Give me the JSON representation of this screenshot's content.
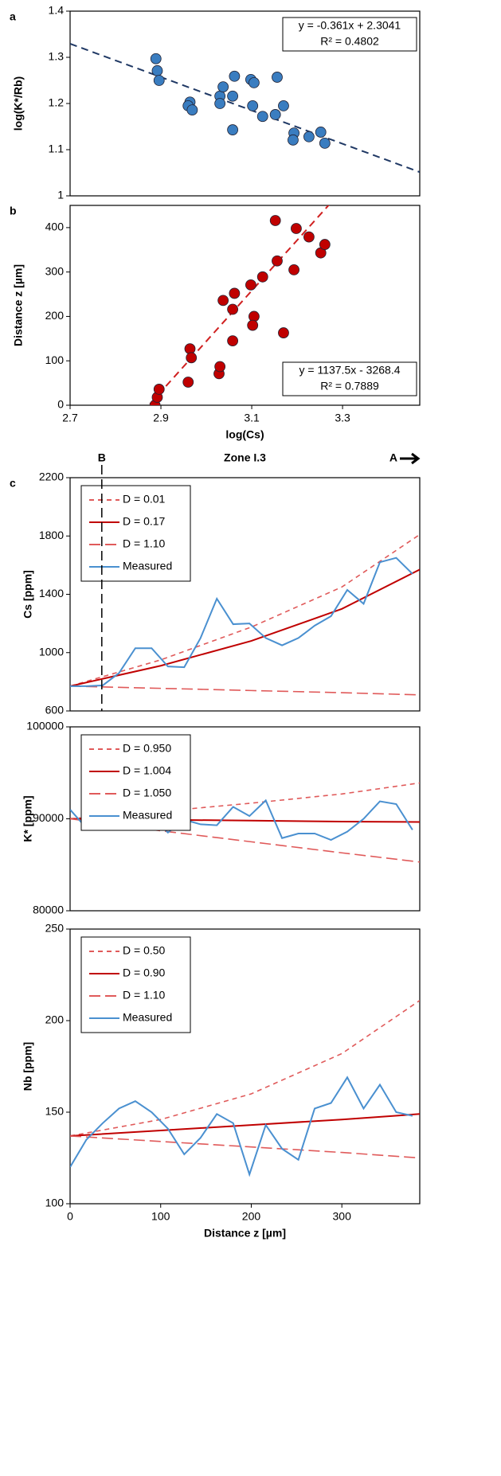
{
  "chart_data": [
    {
      "type": "scatter",
      "panel_label": "a",
      "ylabel": "log(K*/Rb)",
      "x": [
        2.889,
        2.892,
        2.896,
        2.964,
        2.96,
        2.969,
        3.03,
        3.03,
        3.037,
        3.062,
        3.058,
        3.058,
        3.098,
        3.105,
        3.102,
        3.124,
        3.156,
        3.152,
        3.17,
        3.193,
        3.191,
        3.226,
        3.252,
        3.261
      ],
      "values": [
        1.297,
        1.271,
        1.25,
        1.203,
        1.195,
        1.186,
        1.216,
        1.2,
        1.236,
        1.259,
        1.216,
        1.143,
        1.252,
        1.245,
        1.195,
        1.172,
        1.257,
        1.176,
        1.195,
        1.136,
        1.121,
        1.128,
        1.138,
        1.114
      ],
      "color": "#3a7dc0",
      "xlim": [
        2.7,
        3.47
      ],
      "ylim": [
        1,
        1.4
      ],
      "yticks": [
        1,
        1.1,
        1.2,
        1.3,
        1.4
      ],
      "fit": {
        "slope": -0.361,
        "intercept": 2.3041,
        "color": "#1f3864",
        "labels": [
          "y = -0.361x + 2.3041",
          "R² = 0.4802"
        ],
        "corner": "top-right"
      }
    },
    {
      "type": "scatter",
      "panel_label": "b",
      "ylabel": "Distance z [µm]",
      "xlabel": "log(Cs)",
      "x": [
        2.887,
        2.892,
        2.896,
        2.96,
        2.964,
        2.967,
        3.028,
        3.03,
        3.037,
        3.062,
        3.058,
        3.058,
        3.098,
        3.105,
        3.102,
        3.124,
        3.156,
        3.152,
        3.17,
        3.193,
        3.198,
        3.226,
        3.252,
        3.261
      ],
      "values": [
        0,
        18,
        36,
        52,
        127,
        107,
        71,
        87,
        236,
        252,
        216,
        145,
        271,
        200,
        180,
        289,
        325,
        416,
        163,
        305,
        398,
        379,
        343,
        362
      ],
      "color": "#c00000",
      "xlim": [
        2.7,
        3.47
      ],
      "xticks": [
        2.7,
        2.9,
        3.1,
        3.3
      ],
      "ylim": [
        0,
        450
      ],
      "yticks": [
        0,
        100,
        200,
        300,
        400
      ],
      "fit": {
        "slope": 1137.5,
        "intercept": -3268.4,
        "color": "#d02020",
        "labels": [
          "y = 1137.5x - 3268.4",
          "R² = 0.7889"
        ],
        "corner": "bottom-right"
      }
    },
    {
      "type": "line",
      "panel_label": "c",
      "ylabel": "Cs [ppm]",
      "annotations": [
        {
          "text": "B",
          "x": 35
        },
        {
          "text": "Zone I.3"
        },
        {
          "text": "A"
        }
      ],
      "xlim": [
        0,
        386
      ],
      "ylim": [
        600,
        2200
      ],
      "yticks": [
        600,
        1000,
        1400,
        1800,
        2200
      ],
      "legend": "upper left",
      "series": [
        {
          "name": "D = 0.01",
          "color": "#e05a5a",
          "dash": "short",
          "x": [
            0,
            100,
            200,
            300,
            386
          ],
          "values": [
            770,
            950,
            1175,
            1450,
            1810
          ]
        },
        {
          "name": "D = 0.17",
          "color": "#c00000",
          "dash": "solid",
          "x": [
            0,
            100,
            200,
            300,
            386
          ],
          "values": [
            770,
            910,
            1080,
            1300,
            1570
          ]
        },
        {
          "name": "D = 1.10",
          "color": "#e05a5a",
          "dash": "long",
          "x": [
            0,
            100,
            200,
            300,
            386
          ],
          "values": [
            770,
            755,
            740,
            725,
            710
          ]
        },
        {
          "name": "Measured",
          "color": "#4a90d0",
          "dash": "solid",
          "x": [
            0,
            18,
            36,
            54,
            72,
            90,
            108,
            126,
            144,
            162,
            180,
            198,
            216,
            234,
            252,
            270,
            288,
            306,
            324,
            342,
            360,
            378
          ],
          "values": [
            770,
            770,
            775,
            860,
            1030,
            1030,
            905,
            900,
            1100,
            1370,
            1195,
            1200,
            1100,
            1050,
            1100,
            1185,
            1250,
            1430,
            1335,
            1620,
            1650,
            1540
          ]
        }
      ]
    },
    {
      "type": "line",
      "ylabel": "K* [ppm]",
      "xlim": [
        0,
        386
      ],
      "ylim": [
        80000,
        100000
      ],
      "yticks": [
        80000,
        90000,
        100000
      ],
      "legend": "upper left",
      "series": [
        {
          "name": "D = 0.950",
          "color": "#e05a5a",
          "dash": "short",
          "x": [
            0,
            100,
            200,
            300,
            386
          ],
          "values": [
            90000,
            90800,
            91700,
            92700,
            93900
          ]
        },
        {
          "name": "D = 1.004",
          "color": "#c00000",
          "dash": "solid",
          "x": [
            0,
            100,
            200,
            300,
            386
          ],
          "values": [
            90000,
            89900,
            89800,
            89700,
            89650
          ]
        },
        {
          "name": "D = 1.050",
          "color": "#e05a5a",
          "dash": "long",
          "x": [
            0,
            100,
            200,
            300,
            386
          ],
          "values": [
            90000,
            88700,
            87500,
            86300,
            85300
          ]
        },
        {
          "name": "Measured",
          "color": "#4a90d0",
          "dash": "solid",
          "x": [
            0,
            18,
            36,
            54,
            72,
            90,
            108,
            126,
            144,
            162,
            180,
            198,
            216,
            234,
            252,
            270,
            288,
            306,
            324,
            342,
            360,
            378
          ],
          "values": [
            91000,
            89000,
            89600,
            90900,
            89600,
            90300,
            88500,
            89900,
            89400,
            89300,
            91300,
            90300,
            92000,
            87900,
            88400,
            88400,
            87700,
            88600,
            90000,
            91900,
            91600,
            88800
          ]
        }
      ]
    },
    {
      "type": "line",
      "ylabel": "Nb [ppm]",
      "xlabel": "Distance z [µm]",
      "xlim": [
        0,
        386
      ],
      "xticks": [
        0,
        100,
        200,
        300
      ],
      "ylim": [
        100,
        250
      ],
      "yticks": [
        100,
        150,
        200,
        250
      ],
      "legend": "upper left",
      "series": [
        {
          "name": "D = 0.50",
          "color": "#e05a5a",
          "dash": "short",
          "x": [
            0,
            100,
            200,
            300,
            386
          ],
          "values": [
            137,
            146,
            160,
            182,
            211
          ]
        },
        {
          "name": "D = 0.90",
          "color": "#c00000",
          "dash": "solid",
          "x": [
            0,
            100,
            200,
            300,
            386
          ],
          "values": [
            137,
            140,
            143,
            146,
            149
          ]
        },
        {
          "name": "D = 1.10",
          "color": "#e05a5a",
          "dash": "long",
          "x": [
            0,
            100,
            200,
            300,
            386
          ],
          "values": [
            137,
            134,
            131,
            128,
            125
          ]
        },
        {
          "name": "Measured",
          "color": "#4a90d0",
          "dash": "solid",
          "x": [
            0,
            18,
            36,
            54,
            72,
            90,
            108,
            126,
            144,
            162,
            180,
            198,
            216,
            234,
            252,
            270,
            288,
            306,
            324,
            342,
            360,
            378
          ],
          "values": [
            120,
            135,
            144,
            152,
            156,
            150,
            141,
            127,
            136,
            149,
            144,
            116,
            143,
            130,
            124,
            152,
            155,
            169,
            152,
            165,
            150,
            148
          ]
        }
      ]
    }
  ]
}
